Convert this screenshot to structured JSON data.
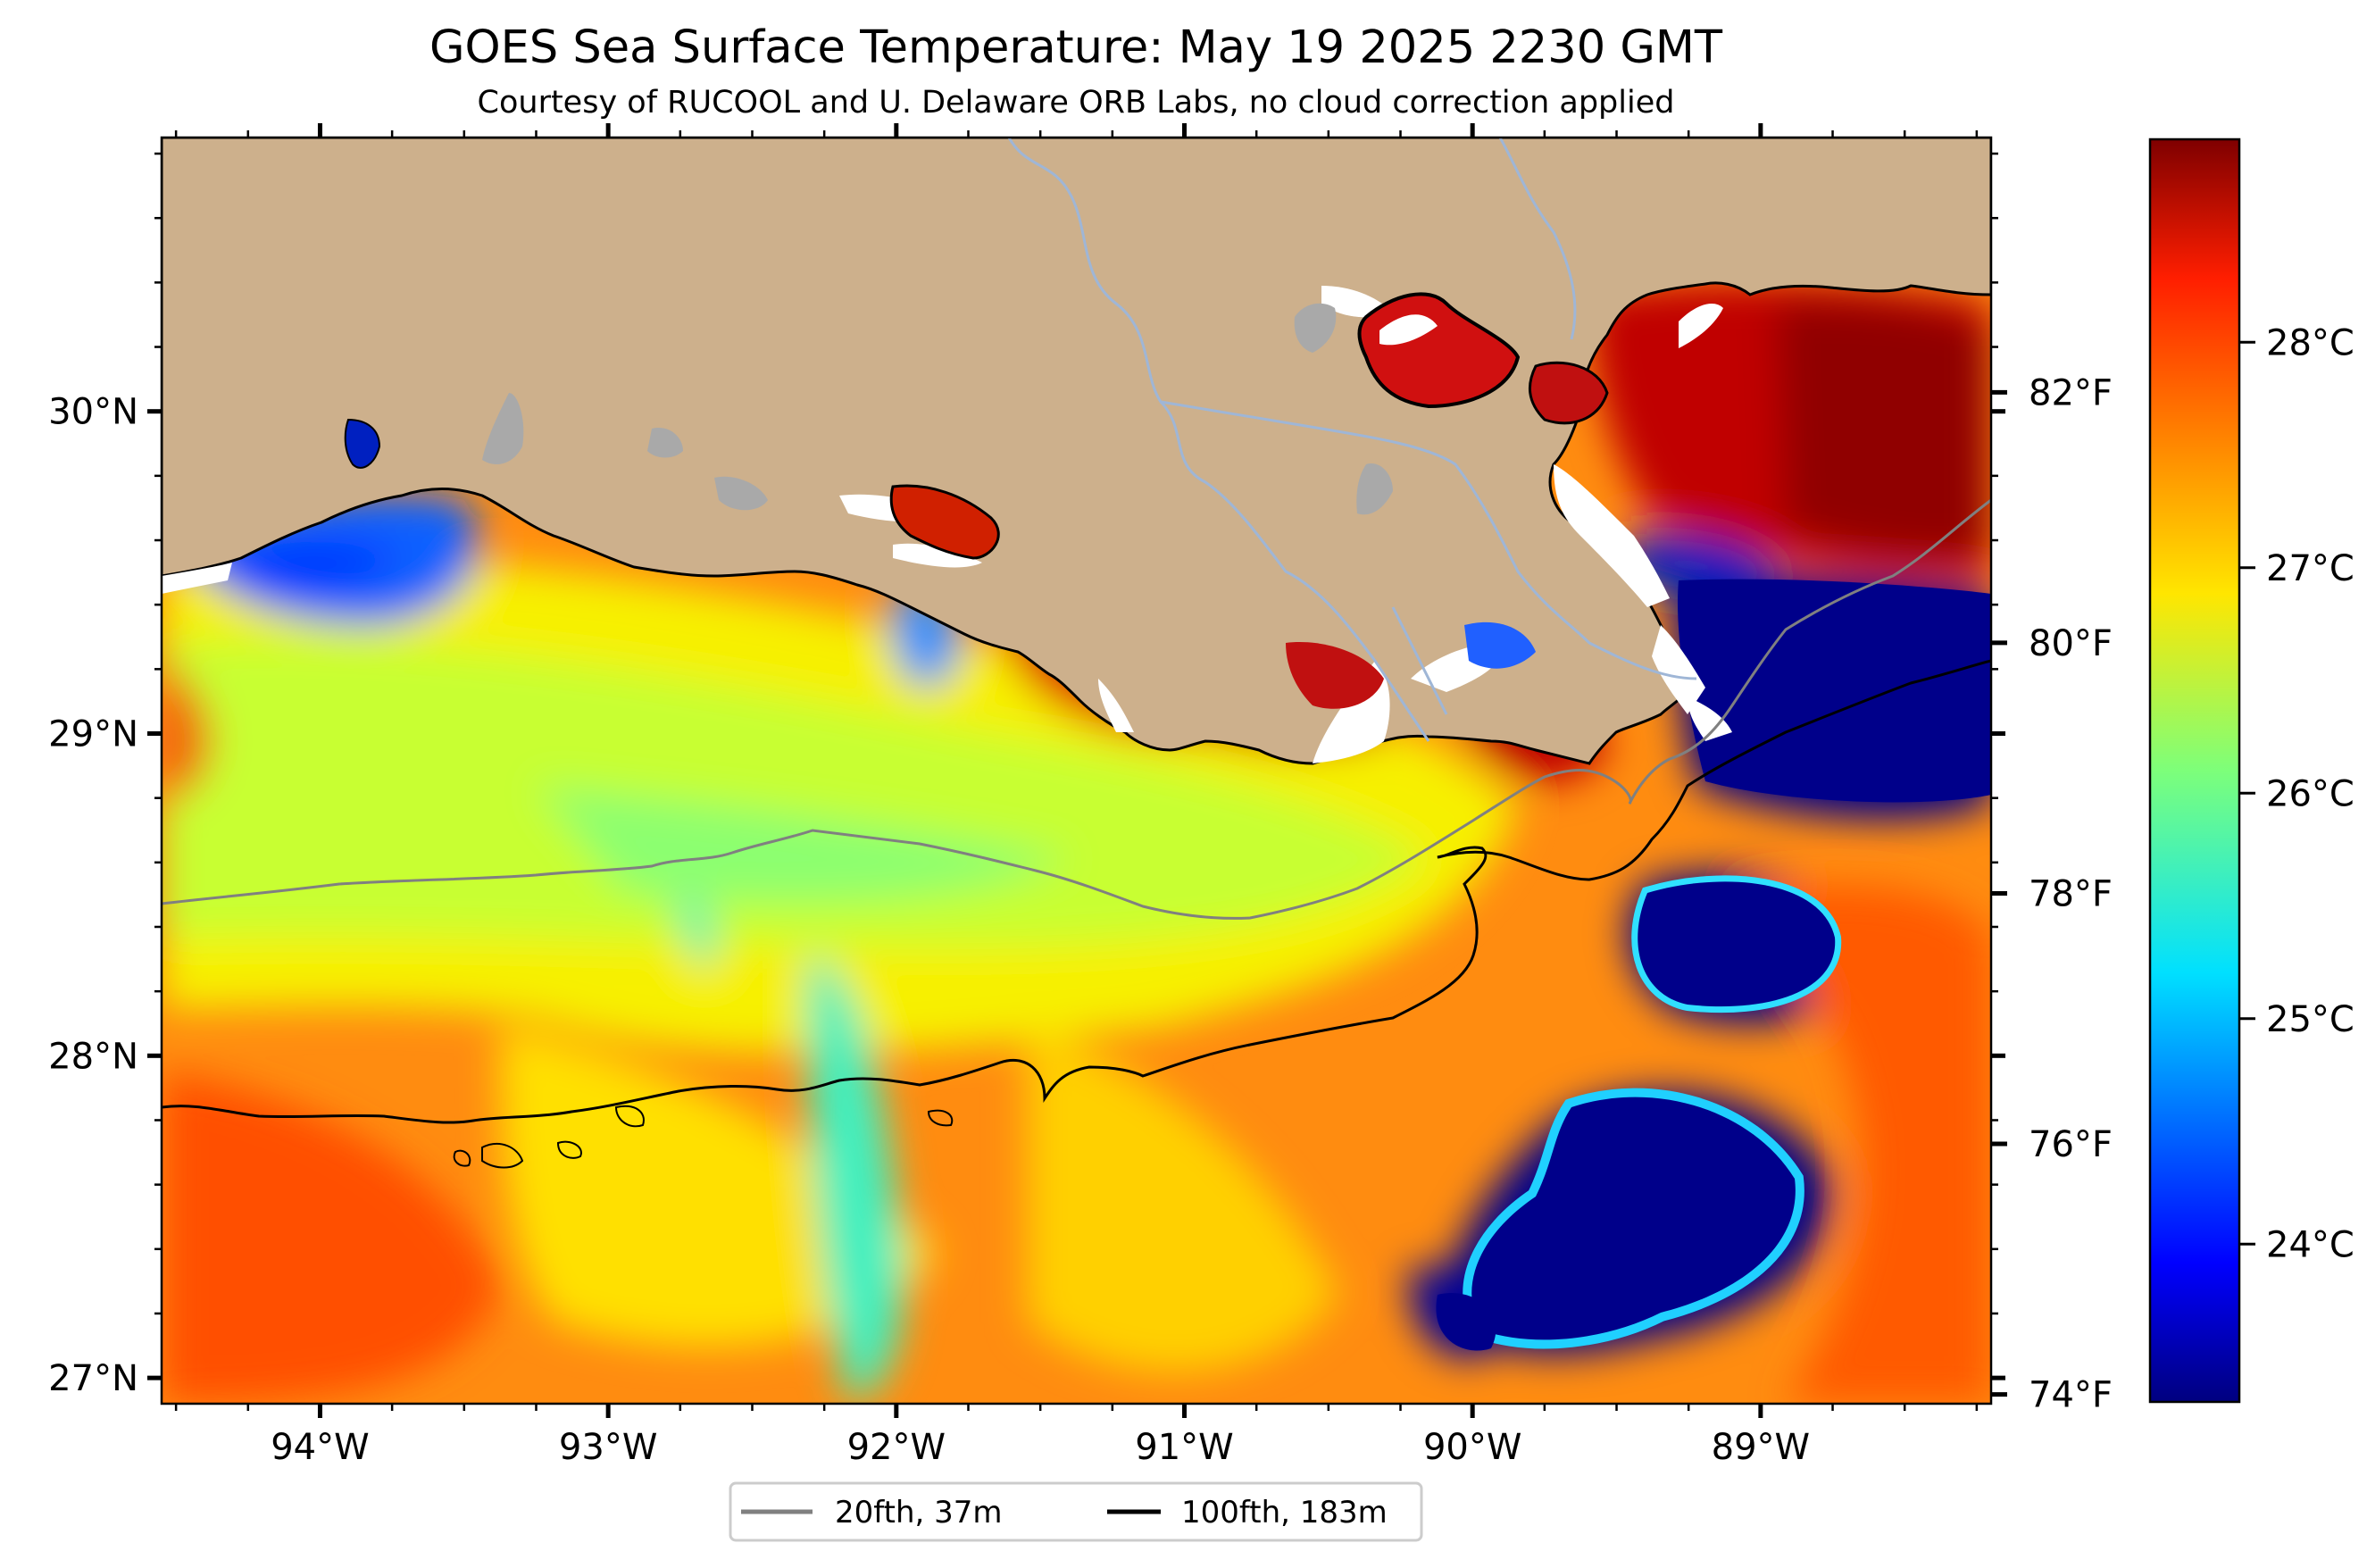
{
  "title": "GOES Sea Surface Temperature: May 19 2025 2230 GMT",
  "subtitle": "Courtesy of RUCOOL and U. Delaware ORB Labs, no cloud correction applied",
  "map": {
    "lon_range": [
      -94.55,
      -88.2
    ],
    "lat_range": [
      26.92,
      30.85
    ],
    "lon_ticks": [
      {
        "value": -94,
        "label": "94°W"
      },
      {
        "value": -93,
        "label": "93°W"
      },
      {
        "value": -92,
        "label": "92°W"
      },
      {
        "value": -91,
        "label": "91°W"
      },
      {
        "value": -90,
        "label": "90°W"
      },
      {
        "value": -89,
        "label": "89°W"
      }
    ],
    "lat_ticks": [
      {
        "value": 30,
        "label": "30°N"
      },
      {
        "value": 29,
        "label": "29°N"
      },
      {
        "value": 28,
        "label": "28°N"
      },
      {
        "value": 27,
        "label": "27°N"
      }
    ],
    "colors": {
      "land": "#cdb08c",
      "lakes": "#a9a9a9",
      "rivers": "#9fb6d6",
      "no_data": "#ffffff",
      "isobath_20fth": "#808080",
      "isobath_100fth": "#000000"
    }
  },
  "fahrenheit_ticks": [
    {
      "value": 82,
      "label": "82°F"
    },
    {
      "value": 80,
      "label": "80°F"
    },
    {
      "value": 78,
      "label": "78°F"
    },
    {
      "value": 76,
      "label": "76°F"
    },
    {
      "value": 74,
      "label": "74°F"
    }
  ],
  "colorbar": {
    "colormap": "jet",
    "range_c": [
      23.3,
      28.9
    ],
    "ticks": [
      {
        "value": 28,
        "label": "28°C"
      },
      {
        "value": 27,
        "label": "27°C"
      },
      {
        "value": 26,
        "label": "26°C"
      },
      {
        "value": 25,
        "label": "25°C"
      },
      {
        "value": 24,
        "label": "24°C"
      }
    ]
  },
  "legend": {
    "items": [
      {
        "label": "20fth, 37m",
        "color": "#808080"
      },
      {
        "label": "100fth, 183m",
        "color": "#000000"
      }
    ]
  }
}
